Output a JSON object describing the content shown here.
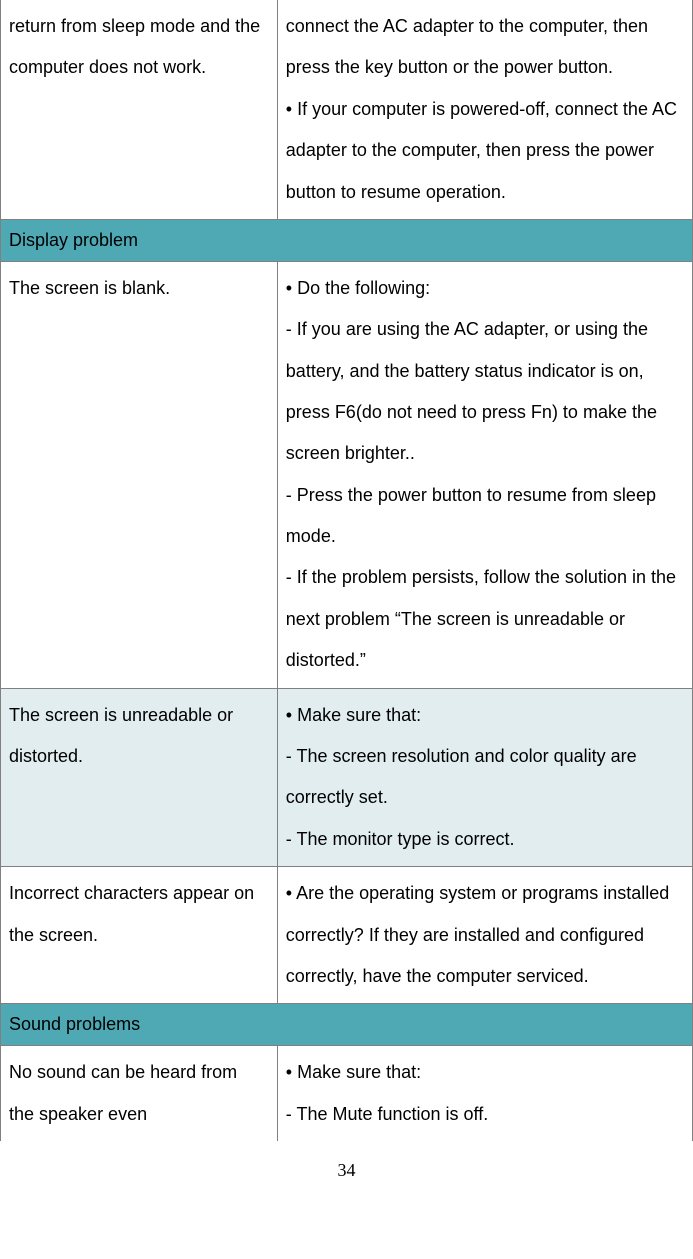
{
  "table": {
    "col_left_width": "40%",
    "col_right_width": "60%",
    "section_header_bg": "#4fa9b5",
    "alt_row_bg": "#e2edf0",
    "border_color": "#808080",
    "rows": [
      {
        "left": "return from sleep mode and the computer does not work.",
        "right": "connect the AC adapter to the computer, then press the key button or the power button.\n• If your computer is powered-off, connect the AC adapter to the computer, then press the power button to resume operation."
      }
    ],
    "section1_title": "Display problem",
    "section1_rows": [
      {
        "left": "The screen is blank.",
        "right": "• Do the following:\n- If you are using the AC adapter, or using the battery, and the battery status indicator is on, press F6(do not need to press Fn) to make the screen brighter..\n- Press the power button to resume from sleep mode.\n- If the problem persists, follow the solution in the next problem “The screen is unreadable or distorted.”"
      },
      {
        "left": "The screen is unreadable or distorted.",
        "right": "• Make sure that:\n- The screen resolution and color quality are correctly set.\n- The monitor type is correct.",
        "alt": true
      },
      {
        "left": "Incorrect characters appear on the screen.",
        "right": "• Are the operating system or programs installed correctly? If they are installed and configured correctly, have the computer serviced."
      }
    ],
    "section2_title": "Sound problems",
    "section2_rows": [
      {
        "left": "No sound can be heard from the speaker even",
        "right": "• Make sure that:\n- The Mute function is off."
      }
    ]
  },
  "page_number": "34"
}
